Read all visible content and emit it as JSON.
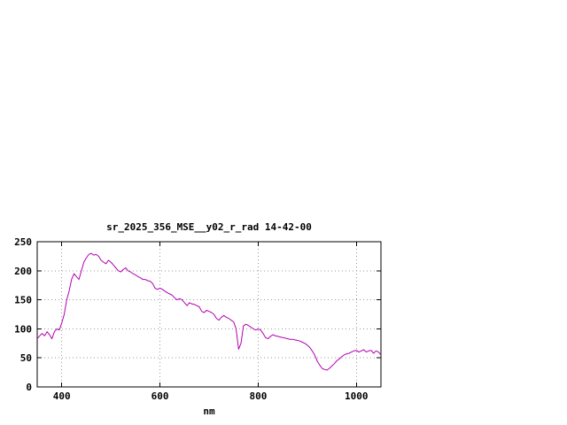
{
  "chart_data": {
    "type": "line",
    "title": "sr_2025_356_MSE__y02_r_rad 14-42-00",
    "xlabel": "nm",
    "ylabel": "",
    "xlim": [
      350,
      1050
    ],
    "ylim": [
      0,
      250
    ],
    "x_ticks": [
      400,
      600,
      800,
      1000
    ],
    "y_ticks": [
      0,
      50,
      100,
      150,
      200,
      250
    ],
    "grid": true,
    "legend": "none",
    "line_color": "#b300b3",
    "x": [
      350,
      355,
      360,
      365,
      370,
      375,
      380,
      385,
      390,
      395,
      400,
      405,
      410,
      415,
      420,
      425,
      430,
      435,
      440,
      445,
      450,
      455,
      460,
      465,
      470,
      475,
      480,
      485,
      490,
      495,
      500,
      505,
      510,
      515,
      520,
      525,
      530,
      535,
      540,
      545,
      550,
      555,
      560,
      565,
      570,
      575,
      580,
      585,
      590,
      595,
      600,
      605,
      610,
      615,
      620,
      625,
      630,
      635,
      640,
      645,
      650,
      655,
      660,
      665,
      670,
      675,
      680,
      685,
      690,
      695,
      700,
      705,
      710,
      715,
      720,
      725,
      730,
      735,
      740,
      745,
      750,
      755,
      760,
      765,
      770,
      775,
      780,
      785,
      790,
      795,
      800,
      805,
      810,
      815,
      820,
      825,
      830,
      835,
      840,
      845,
      850,
      855,
      860,
      865,
      870,
      875,
      880,
      885,
      890,
      895,
      900,
      905,
      910,
      915,
      920,
      925,
      930,
      935,
      940,
      945,
      950,
      955,
      960,
      965,
      970,
      975,
      980,
      985,
      990,
      995,
      1000,
      1005,
      1010,
      1015,
      1020,
      1025,
      1030,
      1035,
      1040,
      1045,
      1050
    ],
    "y": [
      83,
      88,
      92,
      88,
      95,
      90,
      83,
      95,
      100,
      98,
      110,
      125,
      150,
      165,
      185,
      195,
      190,
      185,
      200,
      215,
      222,
      228,
      230,
      227,
      228,
      225,
      218,
      215,
      212,
      218,
      215,
      210,
      205,
      200,
      198,
      202,
      205,
      200,
      198,
      195,
      193,
      190,
      188,
      185,
      185,
      183,
      182,
      178,
      170,
      168,
      170,
      168,
      165,
      162,
      160,
      158,
      153,
      150,
      152,
      150,
      145,
      140,
      145,
      143,
      142,
      140,
      138,
      130,
      128,
      132,
      130,
      128,
      125,
      118,
      115,
      120,
      123,
      120,
      118,
      115,
      112,
      100,
      65,
      75,
      105,
      108,
      106,
      103,
      100,
      98,
      100,
      98,
      92,
      85,
      83,
      87,
      90,
      88,
      87,
      86,
      85,
      84,
      83,
      82,
      82,
      81,
      80,
      79,
      77,
      75,
      72,
      68,
      62,
      55,
      45,
      38,
      32,
      30,
      29,
      32,
      36,
      40,
      45,
      48,
      52,
      55,
      57,
      58,
      60,
      62,
      63,
      60,
      62,
      64,
      60,
      62,
      63,
      58,
      62,
      60,
      55
    ]
  }
}
